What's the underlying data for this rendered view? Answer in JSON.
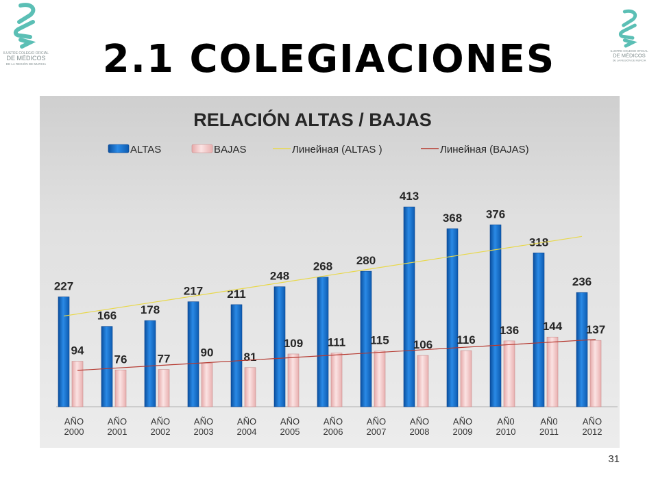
{
  "slide": {
    "title": "2.1 COLEGIACIONES",
    "page_number": "31",
    "logo_lines": [
      "ILUSTRE COLEGIO OFICIAL",
      "DE MÉDICOS",
      "DE LA REGIÓN DE MURCIA"
    ],
    "logo_color": "#5bbfb5"
  },
  "chart_data": {
    "type": "bar",
    "title": "RELACIÓN ALTAS / BAJAS",
    "categories": [
      "AÑO 2000",
      "AÑO 2001",
      "AÑO 2002",
      "AÑO 2003",
      "AÑO 2004",
      "AÑO 2005",
      "AÑO 2006",
      "AÑO 2007",
      "AÑO 2008",
      "AÑO 2009",
      "AÑ0 2010",
      "AÑ0 2011",
      "AÑO 2012"
    ],
    "series": [
      {
        "name": "ALTAS",
        "values": [
          227,
          166,
          178,
          217,
          211,
          248,
          268,
          280,
          413,
          368,
          376,
          318,
          236
        ],
        "color": "#1f78d1"
      },
      {
        "name": "BAJAS",
        "values": [
          94,
          76,
          77,
          90,
          81,
          109,
          111,
          115,
          106,
          116,
          136,
          144,
          137
        ],
        "color": "#f2c4c4"
      }
    ],
    "trendlines": [
      {
        "name": "Линейная (ALTAS )",
        "of": "ALTAS",
        "type": "linear",
        "color": "#e8d84a"
      },
      {
        "name": "Линейная (BAJAS)",
        "of": "BAJAS",
        "type": "linear",
        "color": "#b5382f"
      }
    ],
    "ylim": [
      0,
      450
    ],
    "grid": false,
    "legend_position": "top"
  }
}
